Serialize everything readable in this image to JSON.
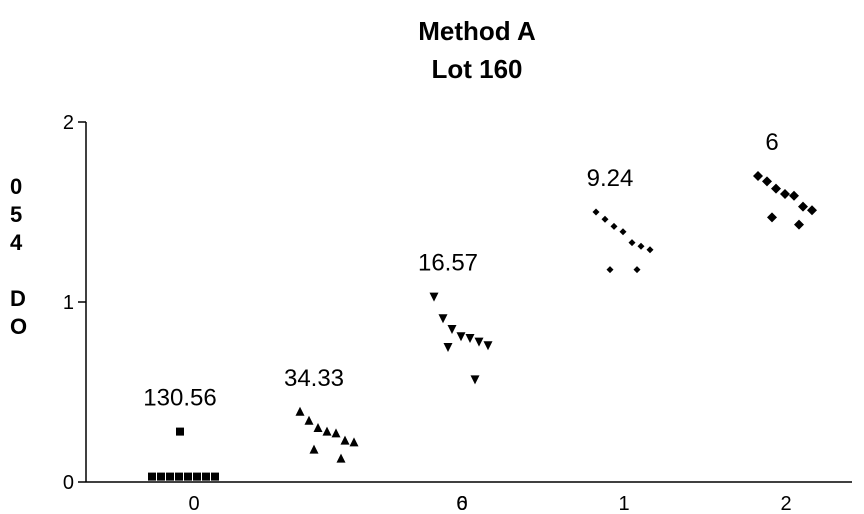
{
  "chart_data": {
    "type": "scatter",
    "title": [
      "Method A",
      "Lot 160"
    ],
    "ylabel_letters": [
      "0",
      "5",
      "4",
      "",
      "D",
      "O"
    ],
    "xlabel": "",
    "ylim": [
      0,
      2
    ],
    "yticks": [
      0,
      1,
      2
    ],
    "yticklabels": [
      "0",
      "1",
      "2"
    ],
    "xticklabels": [
      "0",
      "6",
      "1",
      "2"
    ],
    "xticklabel_overlap": "0",
    "grid": false,
    "legend": "none",
    "marker_color": "#000000",
    "series": [
      {
        "label": "130.56",
        "marker": "square",
        "values": [
          0.28,
          0.03,
          0.03,
          0.03,
          0.03,
          0.03,
          0.03,
          0.03,
          0.03
        ]
      },
      {
        "label": "34.33",
        "marker": "triangle-up",
        "values": [
          0.39,
          0.34,
          0.3,
          0.28,
          0.27,
          0.23,
          0.22,
          0.18,
          0.13
        ]
      },
      {
        "label": "16.57",
        "marker": "triangle-down",
        "values": [
          1.03,
          0.91,
          0.85,
          0.81,
          0.8,
          0.78,
          0.76,
          0.75,
          0.57
        ]
      },
      {
        "label": "9.24",
        "marker": "diamond-small",
        "values": [
          1.5,
          1.46,
          1.42,
          1.39,
          1.33,
          1.31,
          1.29,
          1.18,
          1.18
        ]
      },
      {
        "label": "6",
        "marker": "diamond",
        "values": [
          1.7,
          1.67,
          1.63,
          1.6,
          1.59,
          1.53,
          1.51,
          1.47,
          1.43
        ]
      }
    ]
  }
}
